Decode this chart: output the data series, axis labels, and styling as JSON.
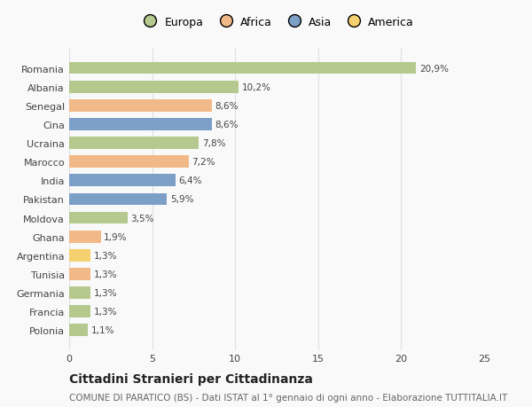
{
  "countries": [
    "Romania",
    "Albania",
    "Senegal",
    "Cina",
    "Ucraina",
    "Marocco",
    "India",
    "Pakistan",
    "Moldova",
    "Ghana",
    "Argentina",
    "Tunisia",
    "Germania",
    "Francia",
    "Polonia"
  ],
  "values": [
    20.9,
    10.2,
    8.6,
    8.6,
    7.8,
    7.2,
    6.4,
    5.9,
    3.5,
    1.9,
    1.3,
    1.3,
    1.3,
    1.3,
    1.1
  ],
  "labels": [
    "20,9%",
    "10,2%",
    "8,6%",
    "8,6%",
    "7,8%",
    "7,2%",
    "6,4%",
    "5,9%",
    "3,5%",
    "1,9%",
    "1,3%",
    "1,3%",
    "1,3%",
    "1,3%",
    "1,1%"
  ],
  "continents": [
    "Europa",
    "Europa",
    "Africa",
    "Asia",
    "Europa",
    "Africa",
    "Asia",
    "Asia",
    "Europa",
    "Africa",
    "America",
    "Africa",
    "Europa",
    "Europa",
    "Europa"
  ],
  "continent_colors": {
    "Europa": "#b5c98e",
    "Africa": "#f0b987",
    "Asia": "#7b9fc7",
    "America": "#f5d06e"
  },
  "legend_order": [
    "Europa",
    "Africa",
    "Asia",
    "America"
  ],
  "xlim": [
    0,
    25
  ],
  "xticks": [
    0,
    5,
    10,
    15,
    20,
    25
  ],
  "title": "Cittadini Stranieri per Cittadinanza",
  "subtitle": "COMUNE DI PARATICO (BS) - Dati ISTAT al 1° gennaio di ogni anno - Elaborazione TUTTITALIA.IT",
  "background_color": "#f9f9f9",
  "grid_color": "#e0e0e0",
  "bar_height": 0.65,
  "title_fontsize": 10,
  "subtitle_fontsize": 7.5,
  "label_fontsize": 7.5,
  "tick_fontsize": 8,
  "legend_fontsize": 9
}
